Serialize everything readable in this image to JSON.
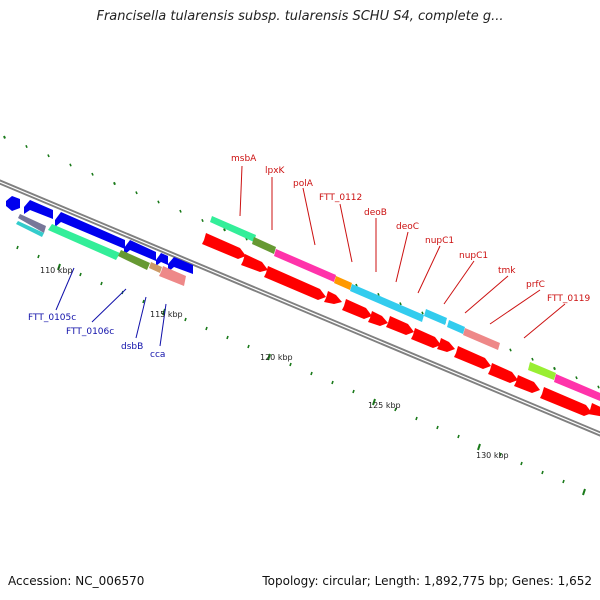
{
  "header": {
    "title": "Francisella tularensis subsp. tularensis SCHU S4, complete g..."
  },
  "footer": {
    "accession": "Accession: NC_006570",
    "summary": "Topology: circular; Length: 1,892,775 bp; Genes: 1,652"
  },
  "colors": {
    "backbone": "#808080",
    "tick": "#1a7a1a",
    "label_forward": "#cc1111",
    "label_reverse": "#1111aa",
    "red_genes": "#ff0000",
    "blue_genes": "#0000ee"
  },
  "scale": {
    "ticks": [
      {
        "label": "110 kbp"
      },
      {
        "label": "115 kbp"
      },
      {
        "label": "120 kbp"
      },
      {
        "label": "125 kbp"
      },
      {
        "label": "130 kbp"
      }
    ]
  },
  "gene_labels_forward": [
    {
      "name": "msbA",
      "color": "#cc1111"
    },
    {
      "name": "lpxK",
      "color": "#cc1111"
    },
    {
      "name": "polA",
      "color": "#cc1111"
    },
    {
      "name": "FTT_0112",
      "color": "#cc1111"
    },
    {
      "name": "deoB",
      "color": "#cc1111"
    },
    {
      "name": "deoC",
      "color": "#cc1111"
    },
    {
      "name": "nupC1",
      "color": "#cc1111"
    },
    {
      "name": "nupC1",
      "color": "#cc1111"
    },
    {
      "name": "tmk",
      "color": "#cc1111"
    },
    {
      "name": "prfC",
      "color": "#cc1111"
    },
    {
      "name": "FTT_0119",
      "color": "#cc1111"
    }
  ],
  "gene_labels_reverse": [
    {
      "name": "FTT_0105c",
      "color": "#1111aa"
    },
    {
      "name": "FTT_0106c",
      "color": "#1111aa"
    },
    {
      "name": "dsbB",
      "color": "#1111aa"
    },
    {
      "name": "cca",
      "color": "#1111aa"
    }
  ]
}
